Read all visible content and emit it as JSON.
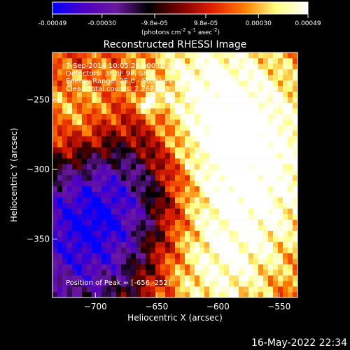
{
  "colorbar": {
    "ticks": [
      "-0.00049",
      "-0.00030",
      "-9.8e-05",
      "9.8e-05",
      "0.00030",
      "0.00049"
    ],
    "tick_values": [
      -0.00049,
      -0.0003,
      -9.8e-05,
      9.8e-05,
      0.0003,
      0.00049
    ],
    "range": [
      -0.00049,
      0.00049
    ],
    "units_prefix": "(photons cm",
    "units_sup1": "-2",
    "units_mid1": " s",
    "units_sup2": "-1",
    "units_mid2": " asec",
    "units_sup3": "-2",
    "units_suffix": ")",
    "colors": [
      "#0000ff",
      "#5000c0",
      "#6a18a0",
      "#000000",
      "#7a0000",
      "#e02000",
      "#ff7a00",
      "#ffff80",
      "#ffffff"
    ]
  },
  "annotations": {
    "time": "7-Sep-2014 10:05:28.000 to 10:11:28.000",
    "detectors": "Detectors: 3F 6F 9F, Sh 0",
    "energy": "Energy Range: 25.0 - 50.0 keV",
    "clean": "Clean     Total counts: 2.76E+03",
    "peak": "Position of Peak = [-656,-252]"
  },
  "timestamp": "16-May-2022 22:34",
  "chart_data": {
    "type": "heatmap",
    "title": "Reconstructed RHESSI Image",
    "xlabel": "Heliocentric X (arcsec)",
    "ylabel": "Heliocentric Y (arcsec)",
    "xlim": [
      -735,
      -535
    ],
    "ylim": [
      -392,
      -216
    ],
    "xticks": [
      -700,
      -650,
      -600,
      -550
    ],
    "yticks": [
      -250,
      -300,
      -350
    ],
    "xtick_labels": [
      "−700",
      "−650",
      "−600",
      "−550"
    ],
    "ytick_labels": [
      "−250",
      "−300",
      "−350"
    ],
    "peak": [
      -656,
      -252
    ],
    "colormap": "hot-with-blue-negative",
    "grid": false,
    "pixel_size_arcsec": 4,
    "clusters": [
      {
        "center": [
          -673,
          -300
        ],
        "radius": 45,
        "level": -0.0004
      },
      {
        "center": [
          -710,
          -350
        ],
        "radius": 45,
        "level": -0.00043
      },
      {
        "center": [
          -575,
          -300
        ],
        "radius": 55,
        "level": 0.00042
      },
      {
        "center": [
          -620,
          -245
        ],
        "radius": 50,
        "level": 0.00033
      },
      {
        "center": [
          -715,
          -265
        ],
        "radius": 30,
        "level": 0.00035
      },
      {
        "center": [
          -610,
          -380
        ],
        "radius": 40,
        "level": 0.00028
      }
    ]
  }
}
